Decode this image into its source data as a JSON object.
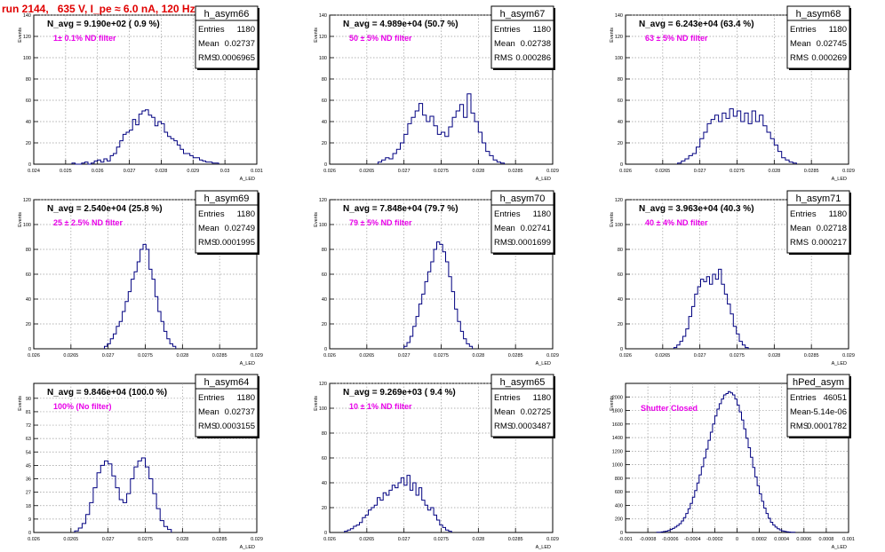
{
  "title": "run 2144,   635 V, I_pe ≈ 6.0 nA, 120 Hz",
  "colors": {
    "title": "#e00000",
    "line": "#000080",
    "note": "#e800e8",
    "grid": "#9a9a9a"
  },
  "chart_data": [
    {
      "type": "histogram",
      "name": "h_asym66",
      "header": "N_avg = 9.190e+02 ( 0.9 %)",
      "note": "1± 0.1% ND filter",
      "stats": {
        "entries": "1180",
        "mean": "0.02737",
        "rms": "0.0006965"
      },
      "ylabel": "Events",
      "xlabel": "A_LED",
      "xlim": [
        0.024,
        0.031
      ],
      "ylim": [
        0,
        140
      ],
      "xticks": [
        "0.024",
        "0.025",
        "0.026",
        "0.027",
        "0.028",
        "0.029",
        "0.03",
        "0.031"
      ],
      "yticks": [
        "0",
        "20",
        "40",
        "60",
        "80",
        "100",
        "120",
        "140"
      ],
      "grid": true,
      "bins": {
        "start": 0.0252,
        "width": 0.0001,
        "values": [
          1,
          0,
          0,
          1,
          2,
          0,
          1,
          3,
          4,
          2,
          5,
          3,
          8,
          10,
          16,
          22,
          28,
          30,
          32,
          42,
          37,
          47,
          50,
          51,
          46,
          44,
          36,
          40,
          38,
          30,
          26,
          24,
          22,
          18,
          14,
          10,
          10,
          8,
          6,
          6,
          4,
          3,
          2,
          2,
          1,
          1
        ]
      }
    },
    {
      "type": "histogram",
      "name": "h_asym67",
      "header": "N_avg = 4.989e+04 (50.7 %)",
      "note": "50 ± 5% ND filter",
      "stats": {
        "entries": "1180",
        "mean": "0.02738",
        "rms": "0.000286"
      },
      "ylabel": "Events",
      "xlabel": "A_LED",
      "xlim": [
        0.026,
        0.029
      ],
      "ylim": [
        0,
        140
      ],
      "xticks": [
        "0.026",
        "0.0265",
        "0.027",
        "0.0275",
        "0.028",
        "0.0285",
        "0.029"
      ],
      "yticks": [
        "0",
        "20",
        "40",
        "60",
        "80",
        "100",
        "120",
        "140"
      ],
      "grid": true,
      "bins": {
        "start": 0.02665,
        "width": 5e-05,
        "values": [
          2,
          4,
          6,
          5,
          10,
          14,
          20,
          28,
          38,
          44,
          50,
          57,
          46,
          40,
          45,
          36,
          28,
          30,
          26,
          35,
          44,
          50,
          56,
          44,
          66,
          48,
          40,
          30,
          20,
          12,
          8,
          4,
          2,
          1
        ]
      }
    },
    {
      "type": "histogram",
      "name": "h_asym68",
      "header": "N_avg = 6.243e+04 (63.4 %)",
      "note": "63 ± 5% ND filter",
      "stats": {
        "entries": "1180",
        "mean": "0.02745",
        "rms": "0.000269"
      },
      "ylabel": "Events",
      "xlabel": "A_LED",
      "xlim": [
        0.026,
        0.029
      ],
      "ylim": [
        0,
        140
      ],
      "xticks": [
        "0.026",
        "0.0265",
        "0.027",
        "0.0275",
        "0.028",
        "0.0285",
        "0.029"
      ],
      "yticks": [
        "0",
        "20",
        "40",
        "60",
        "80",
        "100",
        "120",
        "140"
      ],
      "grid": true,
      "bins": {
        "start": 0.0267,
        "width": 5e-05,
        "values": [
          1,
          3,
          5,
          8,
          10,
          16,
          24,
          30,
          38,
          42,
          46,
          40,
          48,
          43,
          52,
          45,
          50,
          40,
          48,
          38,
          50,
          40,
          46,
          36,
          30,
          24,
          18,
          12,
          6,
          4,
          2,
          1
        ]
      }
    },
    {
      "type": "histogram",
      "name": "h_asym69",
      "header": "N_avg = 2.540e+04 (25.8 %)",
      "note": "25 ± 2.5% ND filter",
      "stats": {
        "entries": "1180",
        "mean": "0.02749",
        "rms": "0.0001995"
      },
      "ylabel": "Events",
      "xlabel": "A_LED",
      "xlim": [
        0.026,
        0.029
      ],
      "ylim": [
        0,
        120
      ],
      "xticks": [
        "0.026",
        "0.0265",
        "0.027",
        "0.0275",
        "0.028",
        "0.0285",
        "0.029"
      ],
      "yticks": [
        "0",
        "20",
        "40",
        "60",
        "80",
        "100",
        "120"
      ],
      "grid": true,
      "bins": {
        "start": 0.02695,
        "width": 4e-05,
        "values": [
          2,
          4,
          8,
          12,
          18,
          22,
          30,
          38,
          46,
          56,
          62,
          70,
          80,
          84,
          80,
          64,
          56,
          42,
          30,
          22,
          14,
          8,
          4,
          2
        ]
      }
    },
    {
      "type": "histogram",
      "name": "h_asym70",
      "header": "N_avg = 7.848e+04 (79.7 %)",
      "note": "79 ± 5% ND filter",
      "stats": {
        "entries": "1180",
        "mean": "0.02741",
        "rms": "0.0001699"
      },
      "ylabel": "Events",
      "xlabel": "A_LED",
      "xlim": [
        0.026,
        0.029
      ],
      "ylim": [
        0,
        120
      ],
      "xticks": [
        "0.026",
        "0.0265",
        "0.027",
        "0.0275",
        "0.028",
        "0.0285",
        "0.029"
      ],
      "yticks": [
        "0",
        "20",
        "40",
        "60",
        "80",
        "100",
        "120"
      ],
      "grid": true,
      "bins": {
        "start": 0.027,
        "width": 4e-05,
        "values": [
          2,
          5,
          10,
          18,
          26,
          36,
          44,
          54,
          62,
          70,
          80,
          86,
          84,
          78,
          70,
          58,
          46,
          32,
          22,
          14,
          8,
          4,
          2
        ]
      }
    },
    {
      "type": "histogram",
      "name": "h_asym71",
      "header": "N_avg = 3.963e+04 (40.3 %)",
      "note": "40 ± 4% ND filter",
      "stats": {
        "entries": "1180",
        "mean": "0.02718",
        "rms": "0.000217"
      },
      "ylabel": "Events",
      "xlabel": "A_LED",
      "xlim": [
        0.026,
        0.029
      ],
      "ylim": [
        0,
        120
      ],
      "xticks": [
        "0.026",
        "0.0265",
        "0.027",
        "0.0275",
        "0.028",
        "0.0285",
        "0.029"
      ],
      "yticks": [
        "0",
        "20",
        "40",
        "60",
        "80",
        "100",
        "120"
      ],
      "grid": true,
      "bins": {
        "start": 0.02665,
        "width": 4e-05,
        "values": [
          1,
          3,
          6,
          10,
          16,
          26,
          34,
          44,
          50,
          56,
          54,
          58,
          52,
          60,
          56,
          64,
          52,
          44,
          36,
          28,
          18,
          12,
          6,
          3,
          1
        ]
      }
    },
    {
      "type": "histogram",
      "name": "h_asym64",
      "header": "N_avg = 9.846e+04 (100.0 %)",
      "note": "100% (No filter)",
      "stats": {
        "entries": "1180",
        "mean": "0.02737",
        "rms": "0.0003155"
      },
      "ylabel": "Events",
      "xlabel": "A_LED",
      "xlim": [
        0.026,
        0.029
      ],
      "ylim": [
        0,
        100
      ],
      "xticks": [
        "0.026",
        "0.0265",
        "0.027",
        "0.0275",
        "0.028",
        "0.0285",
        "0.029"
      ],
      "yticks": [
        "0",
        "9",
        "18",
        "27",
        "36",
        "45",
        "54",
        "63",
        "72",
        "81",
        "90"
      ],
      "grid": true,
      "bins": {
        "start": 0.02655,
        "width": 5e-05,
        "values": [
          1,
          3,
          6,
          12,
          20,
          30,
          40,
          45,
          48,
          46,
          38,
          30,
          22,
          20,
          26,
          36,
          44,
          48,
          50,
          44,
          36,
          26,
          16,
          8,
          4,
          2
        ]
      }
    },
    {
      "type": "histogram",
      "name": "h_asym65",
      "header": "N_avg = 9.269e+03 ( 9.4 %)",
      "note": "10 ± 1% ND filter",
      "stats": {
        "entries": "1180",
        "mean": "0.02725",
        "rms": "0.0003487"
      },
      "ylabel": "Events",
      "xlabel": "A_LED",
      "xlim": [
        0.026,
        0.029
      ],
      "ylim": [
        0,
        120
      ],
      "xticks": [
        "0.026",
        "0.0265",
        "0.027",
        "0.0275",
        "0.028",
        "0.0285",
        "0.029"
      ],
      "yticks": [
        "0",
        "20",
        "40",
        "60",
        "80",
        "100",
        "120"
      ],
      "grid": true,
      "bins": {
        "start": 0.0262,
        "width": 4e-05,
        "values": [
          1,
          2,
          3,
          5,
          6,
          8,
          12,
          14,
          18,
          20,
          22,
          28,
          26,
          32,
          30,
          34,
          38,
          36,
          40,
          44,
          38,
          46,
          34,
          40,
          30,
          36,
          26,
          22,
          18,
          20,
          14,
          10,
          6,
          4,
          2,
          1
        ]
      }
    },
    {
      "type": "histogram",
      "name": "hPed_asym",
      "header": "",
      "note": "Shutter Closed",
      "stats": {
        "entries": "46051",
        "mean": "-5.14e-06",
        "rms": "0.0001782"
      },
      "ylabel": "Events",
      "xlabel": "A_LED",
      "xlim": [
        -0.001,
        0.001
      ],
      "ylim": [
        0,
        2200
      ],
      "xticks": [
        "-0.001",
        "-0.0008",
        "-0.0006",
        "-0.0004",
        "-0.0002",
        "0",
        "0.0002",
        "0.0004",
        "0.0006",
        "0.0008",
        "0.001"
      ],
      "yticks": [
        "0",
        "200",
        "400",
        "600",
        "800",
        "1000",
        "1200",
        "1400",
        "1600",
        "1800",
        "2000"
      ],
      "grid": true,
      "bins": {
        "start": -0.00072,
        "width": 2e-05,
        "values": [
          2,
          4,
          8,
          14,
          20,
          30,
          44,
          60,
          80,
          104,
          130,
          170,
          220,
          280,
          350,
          430,
          520,
          620,
          730,
          850,
          970,
          1100,
          1230,
          1360,
          1480,
          1600,
          1720,
          1820,
          1900,
          1970,
          2030,
          2050,
          2080,
          2060,
          2030,
          1970,
          1880,
          1780,
          1660,
          1530,
          1390,
          1250,
          1110,
          960,
          820,
          690,
          570,
          460,
          360,
          280,
          210,
          150,
          110,
          80,
          56,
          38,
          24,
          16,
          10,
          6,
          4,
          2
        ]
      }
    }
  ]
}
